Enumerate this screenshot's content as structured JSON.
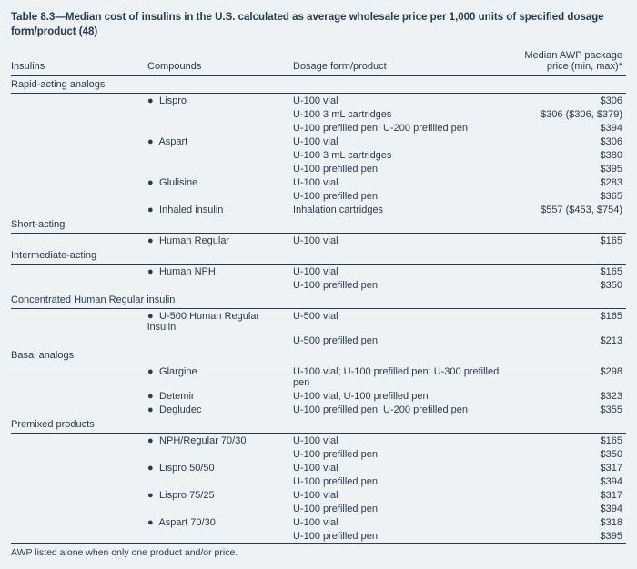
{
  "title": "Table 8.3—Median cost of insulins in the U.S. calculated as average wholesale price per 1,000 units of specified dosage form/product (48)",
  "columns": {
    "insulins": "Insulins",
    "compounds": "Compounds",
    "dosage": "Dosage form/product",
    "price": "Median AWP package price (min, max)*"
  },
  "categories": [
    {
      "name": "Rapid-acting analogs",
      "compounds": [
        {
          "name": "Lispro",
          "rows": [
            {
              "dosage": "U-100 vial",
              "price": "$306"
            },
            {
              "dosage": "U-100 3 mL cartridges",
              "price": "$306 ($306, $379)"
            },
            {
              "dosage": "U-100 prefilled pen; U-200 prefilled pen",
              "price": "$394"
            }
          ]
        },
        {
          "name": "Aspart",
          "rows": [
            {
              "dosage": "U-100 vial",
              "price": "$306"
            },
            {
              "dosage": "U-100 3 mL cartridges",
              "price": "$380"
            },
            {
              "dosage": "U-100 prefilled pen",
              "price": "$395"
            }
          ]
        },
        {
          "name": "Glulisine",
          "rows": [
            {
              "dosage": "U-100 vial",
              "price": "$283"
            },
            {
              "dosage": "U-100 prefilled pen",
              "price": "$365"
            }
          ]
        },
        {
          "name": "Inhaled insulin",
          "rows": [
            {
              "dosage": "Inhalation cartridges",
              "price": "$557 ($453, $754)"
            }
          ]
        }
      ]
    },
    {
      "name": "Short-acting",
      "compounds": [
        {
          "name": "Human Regular",
          "rows": [
            {
              "dosage": "U-100 vial",
              "price": "$165"
            }
          ]
        }
      ]
    },
    {
      "name": "Intermediate-acting",
      "compounds": [
        {
          "name": "Human NPH",
          "rows": [
            {
              "dosage": "U-100 vial",
              "price": "$165"
            },
            {
              "dosage": "U-100 prefilled pen",
              "price": "$350"
            }
          ]
        }
      ]
    },
    {
      "name": "Concentrated Human Regular insulin",
      "compounds": [
        {
          "name": "U-500 Human Regular insulin",
          "rows": [
            {
              "dosage": "U-500 vial",
              "price": "$165"
            },
            {
              "dosage": "U-500 prefilled pen",
              "price": "$213"
            }
          ]
        }
      ]
    },
    {
      "name": "Basal analogs",
      "compounds": [
        {
          "name": "Glargine",
          "rows": [
            {
              "dosage": "U-100 vial; U-100 prefilled pen; U-300 prefilled pen",
              "price": "$298"
            }
          ]
        },
        {
          "name": "Detemir",
          "rows": [
            {
              "dosage": "U-100 vial; U-100 prefilled pen",
              "price": "$323"
            }
          ]
        },
        {
          "name": "Degludec",
          "rows": [
            {
              "dosage": "U-100 prefilled pen; U-200 prefilled pen",
              "price": "$355"
            }
          ]
        }
      ]
    },
    {
      "name": "Premixed products",
      "compounds": [
        {
          "name": "NPH/Regular 70/30",
          "rows": [
            {
              "dosage": "U-100 vial",
              "price": "$165"
            },
            {
              "dosage": "U-100 prefilled pen",
              "price": "$350"
            }
          ]
        },
        {
          "name": "Lispro 50/50",
          "rows": [
            {
              "dosage": "U-100 vial",
              "price": "$317"
            },
            {
              "dosage": "U-100 prefilled pen",
              "price": "$394"
            }
          ]
        },
        {
          "name": "Lispro 75/25",
          "rows": [
            {
              "dosage": "U-100 vial",
              "price": "$317"
            },
            {
              "dosage": "U-100 prefilled pen",
              "price": "$394"
            }
          ]
        },
        {
          "name": "Aspart 70/30",
          "rows": [
            {
              "dosage": "U-100 vial",
              "price": "$318"
            },
            {
              "dosage": "U-100 prefilled pen",
              "price": "$395"
            }
          ]
        }
      ]
    }
  ],
  "footnote": "AWP listed alone when only one product and/or price."
}
